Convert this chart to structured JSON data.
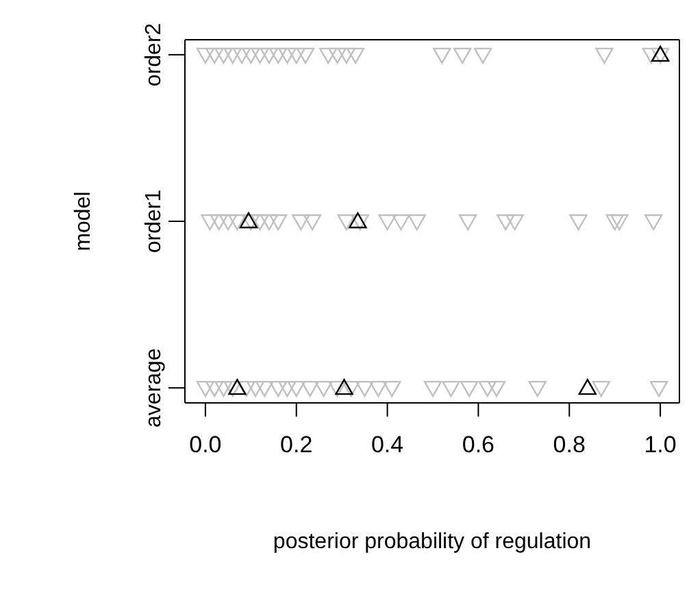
{
  "chart_data": {
    "type": "scatter",
    "orientation": "horizontal",
    "xlabel": "posterior probability of regulation",
    "ylabel": "model",
    "categories": [
      "order2",
      "order1",
      "average"
    ],
    "xlim": [
      -0.045,
      1.042
    ],
    "xticks": [
      {
        "value": 0,
        "label": "0.0"
      },
      0.2,
      0.4,
      0.6,
      0.8,
      {
        "value": 1,
        "label": "1.0"
      }
    ],
    "legend": false,
    "series": [
      {
        "color": "#c0c0c0",
        "marker": "triangle-down",
        "x": [
          "order2",
          "order2",
          "order2",
          "order2",
          "order2",
          "order2",
          "order2",
          "order2",
          "order2",
          "order2",
          "order2",
          "order2",
          "order2",
          "order2",
          "order2",
          "order2",
          "order2",
          "order2",
          "order2",
          "order2",
          "order2",
          "order2",
          "order1",
          "order1",
          "order1",
          "order1",
          "order1",
          "order1",
          "order1",
          "order1",
          "order1",
          "order1",
          "order1",
          "order1",
          "order1",
          "order1",
          "order1",
          "order1",
          "order1",
          "order1",
          "order1",
          "order1",
          "order1",
          "order1",
          "average",
          "average",
          "average",
          "average",
          "average",
          "average",
          "average",
          "average",
          "average",
          "average",
          "average",
          "average",
          "average",
          "average",
          "average",
          "average",
          "average",
          "average",
          "average",
          "average",
          "average",
          "average",
          "average",
          "average",
          "average"
        ],
        "values": [
          0.0,
          0.02,
          0.04,
          0.06,
          0.08,
          0.1,
          0.12,
          0.14,
          0.16,
          0.18,
          0.2,
          0.22,
          0.27,
          0.29,
          0.31,
          0.33,
          0.52,
          0.565,
          0.61,
          0.877,
          0.98,
          1.0,
          0.01,
          0.03,
          0.05,
          0.07,
          0.1,
          0.12,
          0.14,
          0.16,
          0.21,
          0.235,
          0.31,
          0.34,
          0.4,
          0.43,
          0.465,
          0.577,
          0.66,
          0.68,
          0.82,
          0.9,
          0.91,
          0.985,
          0.0,
          0.02,
          0.04,
          0.06,
          0.09,
          0.11,
          0.13,
          0.16,
          0.18,
          0.2,
          0.23,
          0.26,
          0.29,
          0.32,
          0.35,
          0.38,
          0.41,
          0.5,
          0.54,
          0.58,
          0.62,
          0.64,
          0.73,
          0.87,
          0.997
        ]
      },
      {
        "color": "#000000",
        "marker": "triangle",
        "x": [
          "order2",
          "order1",
          "order1",
          "average",
          "average",
          "average"
        ],
        "values": [
          1.0,
          0.095,
          0.335,
          0.07,
          0.305,
          0.84
        ]
      }
    ]
  }
}
